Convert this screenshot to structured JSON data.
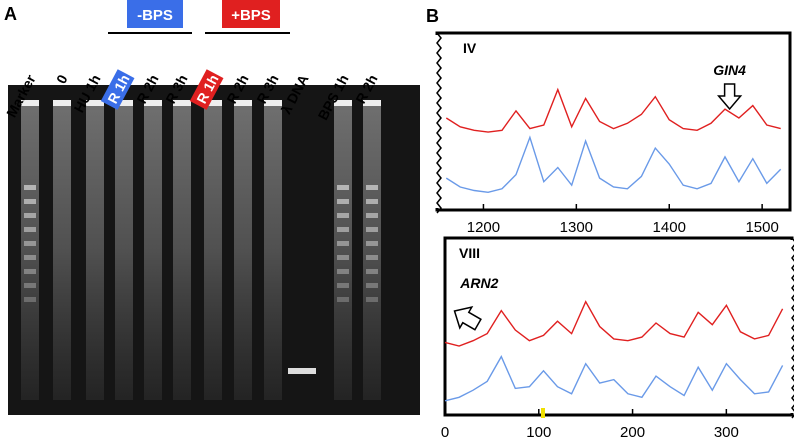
{
  "panel_labels": [
    "A",
    "B"
  ],
  "gel": {
    "groups": [
      "-BPS",
      "+BPS"
    ],
    "lanes": [
      "Marker",
      "0",
      "HU 1h",
      "R 1h",
      "R 2h",
      "R 3h",
      "R 1h",
      "R 2h",
      "R 3h",
      "λ DNA",
      "BPS 1h",
      "R 2h"
    ]
  },
  "chart_data": [
    {
      "type": "line",
      "title": "IV",
      "annotations": [
        {
          "text": "GIN4",
          "x": 1465
        }
      ],
      "x": [
        1160,
        1175,
        1190,
        1205,
        1220,
        1235,
        1250,
        1265,
        1280,
        1295,
        1310,
        1325,
        1340,
        1355,
        1370,
        1385,
        1400,
        1415,
        1430,
        1445,
        1460,
        1475,
        1490,
        1505,
        1520
      ],
      "xlim": [
        1150,
        1530
      ],
      "xticks": [
        1200,
        1300,
        1400,
        1500
      ],
      "ylim": [
        0,
        10
      ],
      "series": [
        {
          "color": "#e02020",
          "values": [
            5.2,
            4.7,
            4.5,
            4.4,
            4.5,
            5.6,
            4.6,
            4.8,
            6.8,
            4.7,
            6.3,
            5.0,
            4.6,
            4.9,
            5.4,
            6.4,
            5.1,
            4.6,
            4.5,
            4.9,
            5.7,
            5.2,
            5.9,
            4.8,
            4.6
          ]
        },
        {
          "color": "#6a9ae8",
          "values": [
            1.8,
            1.3,
            1.1,
            1.0,
            1.2,
            2.0,
            4.1,
            1.6,
            2.4,
            1.4,
            3.9,
            1.8,
            1.3,
            1.2,
            1.9,
            3.5,
            2.6,
            1.4,
            1.2,
            1.5,
            3.0,
            1.6,
            2.9,
            1.5,
            2.3
          ]
        }
      ]
    },
    {
      "type": "line",
      "title": "VIII",
      "annotations": [
        {
          "text": "ARN2",
          "x": 12
        }
      ],
      "x": [
        0,
        15,
        30,
        45,
        60,
        75,
        90,
        105,
        120,
        135,
        150,
        165,
        180,
        195,
        210,
        225,
        240,
        255,
        270,
        285,
        300,
        315,
        330,
        345,
        360
      ],
      "xlim": [
        0,
        370
      ],
      "xticks": [
        0,
        100,
        200,
        300
      ],
      "ylim": [
        0,
        10
      ],
      "series": [
        {
          "color": "#e02020",
          "values": [
            4.1,
            3.9,
            4.2,
            4.6,
            5.9,
            4.8,
            4.2,
            4.5,
            5.3,
            4.6,
            6.4,
            5.0,
            4.3,
            4.2,
            4.4,
            5.2,
            4.6,
            4.4,
            5.8,
            5.1,
            6.2,
            4.7,
            4.3,
            4.5,
            6.0
          ]
        },
        {
          "color": "#6a9ae8",
          "values": [
            0.8,
            1.0,
            1.4,
            1.9,
            3.3,
            1.5,
            1.6,
            2.5,
            1.6,
            1.2,
            2.9,
            1.8,
            2.0,
            1.2,
            1.0,
            2.2,
            1.6,
            1.1,
            2.7,
            1.4,
            2.9,
            2.0,
            1.2,
            1.3,
            2.8
          ]
        }
      ]
    }
  ]
}
